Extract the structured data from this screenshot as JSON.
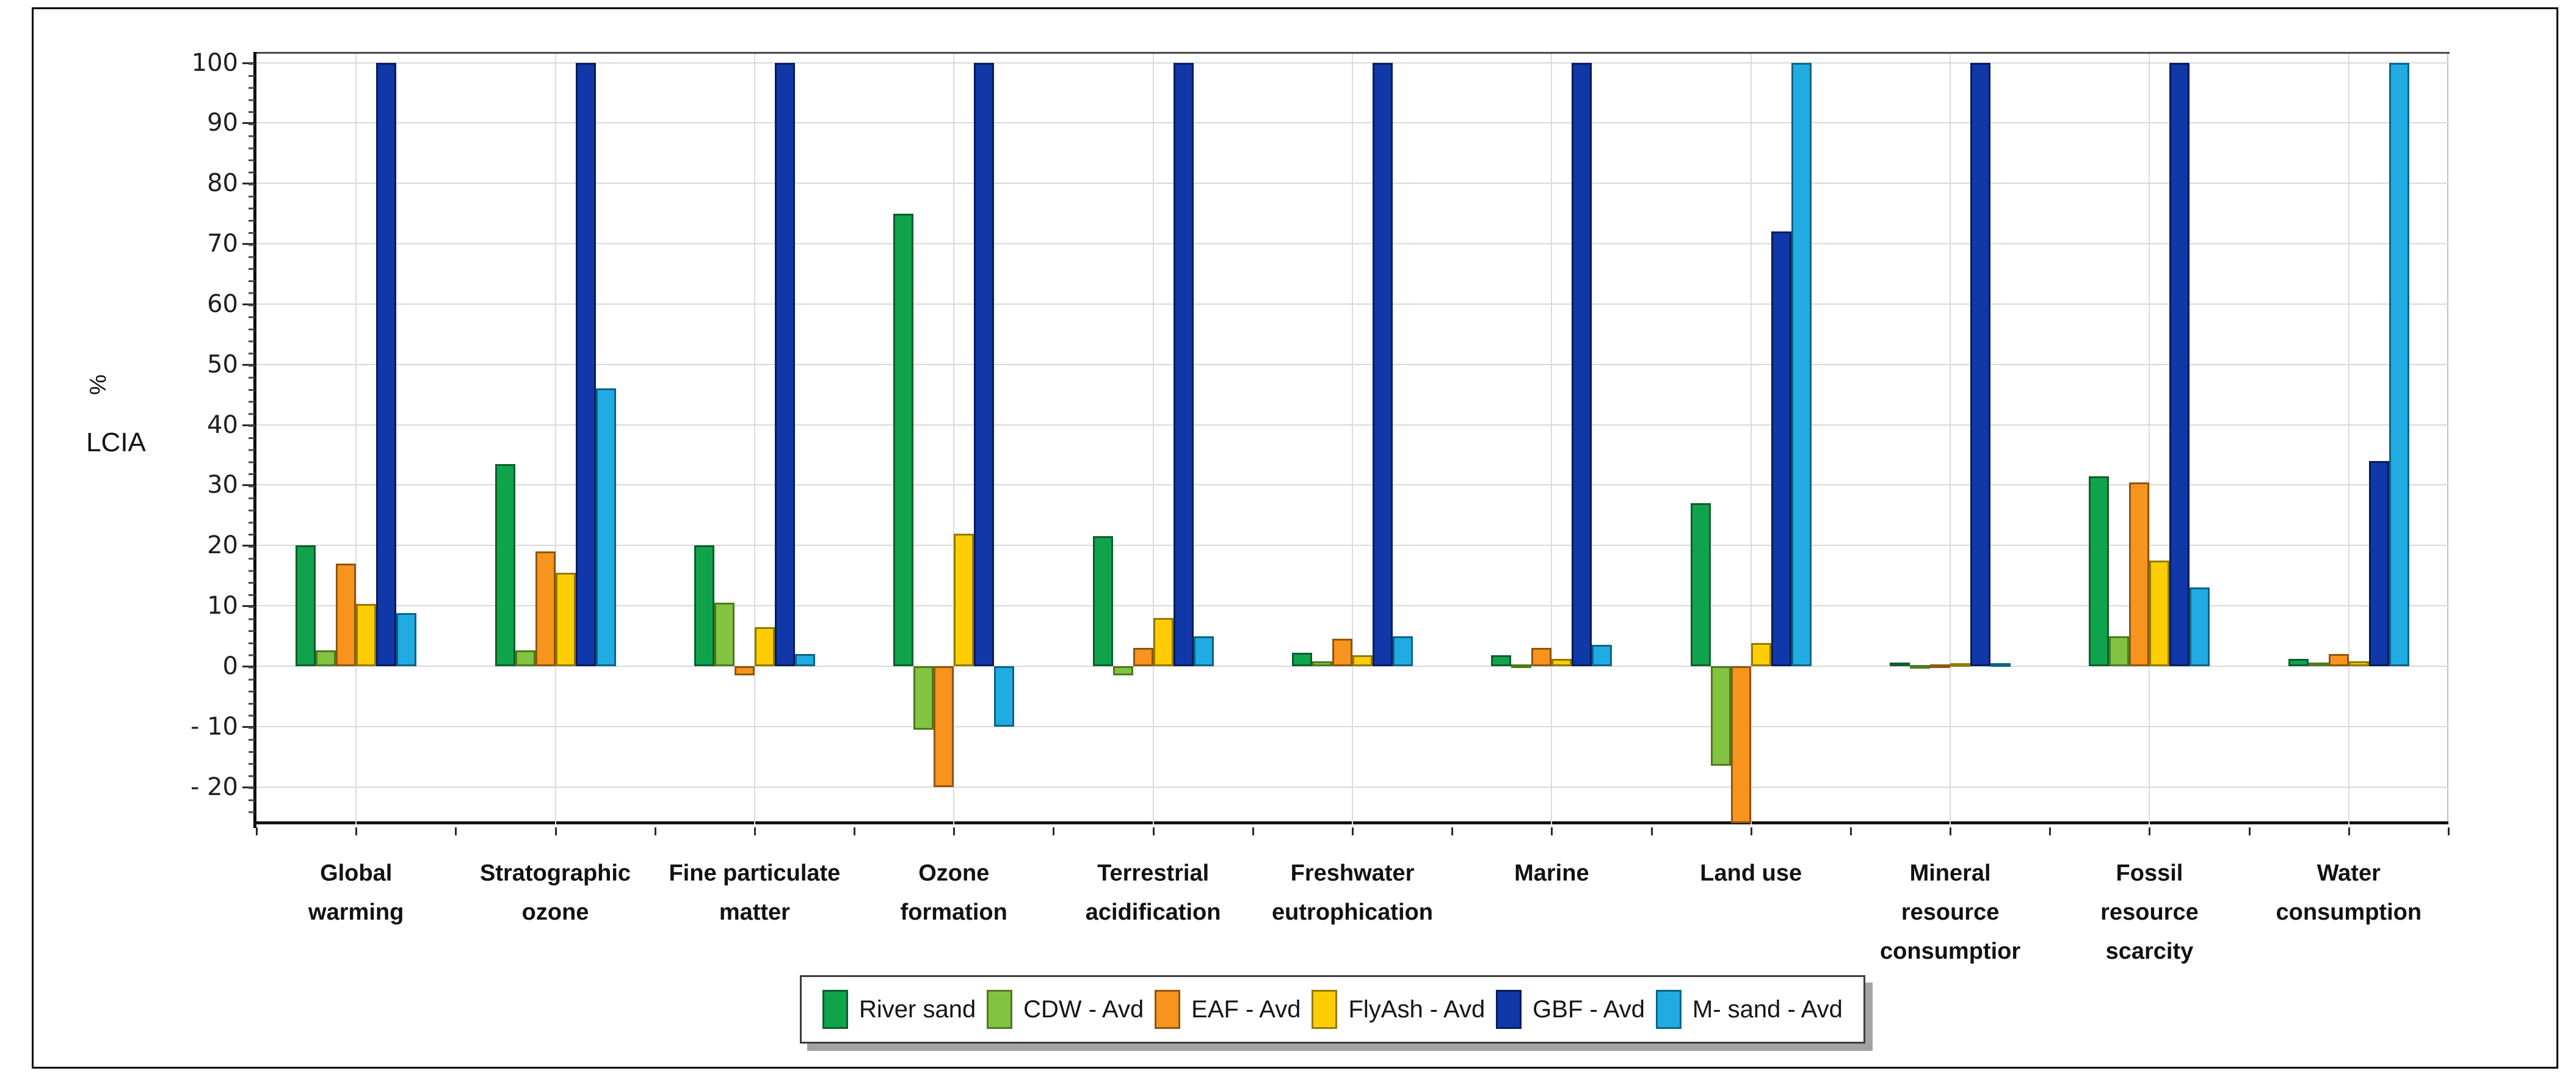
{
  "figure": {
    "y_axis_unit": "%",
    "y_axis_name": "LCIA"
  },
  "chart_data": {
    "type": "bar",
    "title": "",
    "ylabel": "% LCIA",
    "xlabel": "",
    "ylim": [
      -26.3,
      101.5
    ],
    "yticks": [
      100,
      90,
      80,
      70,
      60,
      50,
      40,
      30,
      20,
      10,
      0,
      -10,
      -20
    ],
    "ytick_labels": [
      "100",
      "90",
      "80",
      "70",
      "60",
      "50",
      "40",
      "30",
      "20",
      "10",
      "0",
      "- 10",
      "- 20"
    ],
    "grid": true,
    "legend_position": "bottom",
    "categories": [
      {
        "label": "Global warming",
        "lines": [
          "Global",
          "warming"
        ]
      },
      {
        "label": "Stratographic ozone",
        "lines": [
          "Stratographic",
          "ozone"
        ]
      },
      {
        "label": "Fine particulate matter",
        "lines": [
          "Fine particulate",
          "matter"
        ]
      },
      {
        "label": "Ozone formation",
        "lines": [
          "Ozone",
          "formation"
        ]
      },
      {
        "label": "Terrestrial acidification",
        "lines": [
          "Terrestrial",
          "acidification"
        ]
      },
      {
        "label": "Freshwater eutrophication",
        "lines": [
          "Freshwater",
          "eutrophication"
        ]
      },
      {
        "label": "Marine",
        "lines": [
          "Marine"
        ]
      },
      {
        "label": "Land use",
        "lines": [
          "Land use"
        ]
      },
      {
        "label": "Mineral resource consumptior",
        "lines": [
          "Mineral",
          "resource",
          "consumptior"
        ]
      },
      {
        "label": "Fossil resource scarcity",
        "lines": [
          "Fossil",
          "resource",
          "scarcity"
        ]
      },
      {
        "label": "Water consumption",
        "lines": [
          "Water",
          "consumption"
        ]
      }
    ],
    "series": [
      {
        "name": "River sand",
        "color": "#0FA44B",
        "border": "#0b5e2d",
        "values": [
          20,
          33.5,
          20,
          75,
          21.5,
          2.2,
          1.8,
          27,
          0.6,
          31.5,
          1.2
        ]
      },
      {
        "name": "CDW - Avd",
        "color": "#82C341",
        "border": "#4c7a1d",
        "values": [
          2.6,
          2.6,
          10.5,
          -10.5,
          -1.5,
          0.8,
          0.3,
          -16.5,
          0.2,
          5,
          0.6
        ]
      },
      {
        "name": "EAF - Avd",
        "color": "#F7941D",
        "border": "#8f5510",
        "values": [
          17,
          19,
          -1.5,
          -20,
          3,
          4.6,
          3,
          -26,
          0.3,
          30.5,
          2
        ]
      },
      {
        "name": "FlyAsh - Avd",
        "color": "#FFCD05",
        "border": "#8f7a00",
        "values": [
          10.3,
          15.5,
          6.5,
          22,
          8,
          1.8,
          1.2,
          3.8,
          0.5,
          17.5,
          0.8
        ]
      },
      {
        "name": "GBF - Avd",
        "color": "#1138A8",
        "border": "#071c5c",
        "values": [
          100,
          100,
          100,
          100,
          100,
          100,
          100,
          72,
          100,
          100,
          34
        ]
      },
      {
        "name": "M- sand - Avd",
        "color": "#20ACE3",
        "border": "#0c6487",
        "values": [
          8.8,
          46,
          2,
          -10,
          5,
          5,
          3.5,
          100,
          0.5,
          13,
          100
        ]
      }
    ]
  }
}
